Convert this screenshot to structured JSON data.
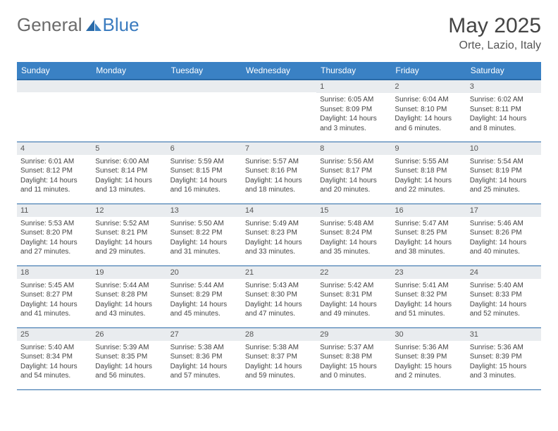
{
  "brand": {
    "part1": "General",
    "part2": "Blue"
  },
  "title": "May 2025",
  "location": "Orte, Lazio, Italy",
  "colors": {
    "header_bg": "#3a81c4",
    "header_border": "#2a6aa8",
    "daynum_bg": "#e9ecef",
    "text": "#333333",
    "brand_blue": "#3a7bbf"
  },
  "weekdays": [
    "Sunday",
    "Monday",
    "Tuesday",
    "Wednesday",
    "Thursday",
    "Friday",
    "Saturday"
  ],
  "weeks": [
    [
      {
        "n": "",
        "sr": "",
        "ss": "",
        "dl": ""
      },
      {
        "n": "",
        "sr": "",
        "ss": "",
        "dl": ""
      },
      {
        "n": "",
        "sr": "",
        "ss": "",
        "dl": ""
      },
      {
        "n": "",
        "sr": "",
        "ss": "",
        "dl": ""
      },
      {
        "n": "1",
        "sr": "Sunrise: 6:05 AM",
        "ss": "Sunset: 8:09 PM",
        "dl": "Daylight: 14 hours and 3 minutes."
      },
      {
        "n": "2",
        "sr": "Sunrise: 6:04 AM",
        "ss": "Sunset: 8:10 PM",
        "dl": "Daylight: 14 hours and 6 minutes."
      },
      {
        "n": "3",
        "sr": "Sunrise: 6:02 AM",
        "ss": "Sunset: 8:11 PM",
        "dl": "Daylight: 14 hours and 8 minutes."
      }
    ],
    [
      {
        "n": "4",
        "sr": "Sunrise: 6:01 AM",
        "ss": "Sunset: 8:12 PM",
        "dl": "Daylight: 14 hours and 11 minutes."
      },
      {
        "n": "5",
        "sr": "Sunrise: 6:00 AM",
        "ss": "Sunset: 8:14 PM",
        "dl": "Daylight: 14 hours and 13 minutes."
      },
      {
        "n": "6",
        "sr": "Sunrise: 5:59 AM",
        "ss": "Sunset: 8:15 PM",
        "dl": "Daylight: 14 hours and 16 minutes."
      },
      {
        "n": "7",
        "sr": "Sunrise: 5:57 AM",
        "ss": "Sunset: 8:16 PM",
        "dl": "Daylight: 14 hours and 18 minutes."
      },
      {
        "n": "8",
        "sr": "Sunrise: 5:56 AM",
        "ss": "Sunset: 8:17 PM",
        "dl": "Daylight: 14 hours and 20 minutes."
      },
      {
        "n": "9",
        "sr": "Sunrise: 5:55 AM",
        "ss": "Sunset: 8:18 PM",
        "dl": "Daylight: 14 hours and 22 minutes."
      },
      {
        "n": "10",
        "sr": "Sunrise: 5:54 AM",
        "ss": "Sunset: 8:19 PM",
        "dl": "Daylight: 14 hours and 25 minutes."
      }
    ],
    [
      {
        "n": "11",
        "sr": "Sunrise: 5:53 AM",
        "ss": "Sunset: 8:20 PM",
        "dl": "Daylight: 14 hours and 27 minutes."
      },
      {
        "n": "12",
        "sr": "Sunrise: 5:52 AM",
        "ss": "Sunset: 8:21 PM",
        "dl": "Daylight: 14 hours and 29 minutes."
      },
      {
        "n": "13",
        "sr": "Sunrise: 5:50 AM",
        "ss": "Sunset: 8:22 PM",
        "dl": "Daylight: 14 hours and 31 minutes."
      },
      {
        "n": "14",
        "sr": "Sunrise: 5:49 AM",
        "ss": "Sunset: 8:23 PM",
        "dl": "Daylight: 14 hours and 33 minutes."
      },
      {
        "n": "15",
        "sr": "Sunrise: 5:48 AM",
        "ss": "Sunset: 8:24 PM",
        "dl": "Daylight: 14 hours and 35 minutes."
      },
      {
        "n": "16",
        "sr": "Sunrise: 5:47 AM",
        "ss": "Sunset: 8:25 PM",
        "dl": "Daylight: 14 hours and 38 minutes."
      },
      {
        "n": "17",
        "sr": "Sunrise: 5:46 AM",
        "ss": "Sunset: 8:26 PM",
        "dl": "Daylight: 14 hours and 40 minutes."
      }
    ],
    [
      {
        "n": "18",
        "sr": "Sunrise: 5:45 AM",
        "ss": "Sunset: 8:27 PM",
        "dl": "Daylight: 14 hours and 41 minutes."
      },
      {
        "n": "19",
        "sr": "Sunrise: 5:44 AM",
        "ss": "Sunset: 8:28 PM",
        "dl": "Daylight: 14 hours and 43 minutes."
      },
      {
        "n": "20",
        "sr": "Sunrise: 5:44 AM",
        "ss": "Sunset: 8:29 PM",
        "dl": "Daylight: 14 hours and 45 minutes."
      },
      {
        "n": "21",
        "sr": "Sunrise: 5:43 AM",
        "ss": "Sunset: 8:30 PM",
        "dl": "Daylight: 14 hours and 47 minutes."
      },
      {
        "n": "22",
        "sr": "Sunrise: 5:42 AM",
        "ss": "Sunset: 8:31 PM",
        "dl": "Daylight: 14 hours and 49 minutes."
      },
      {
        "n": "23",
        "sr": "Sunrise: 5:41 AM",
        "ss": "Sunset: 8:32 PM",
        "dl": "Daylight: 14 hours and 51 minutes."
      },
      {
        "n": "24",
        "sr": "Sunrise: 5:40 AM",
        "ss": "Sunset: 8:33 PM",
        "dl": "Daylight: 14 hours and 52 minutes."
      }
    ],
    [
      {
        "n": "25",
        "sr": "Sunrise: 5:40 AM",
        "ss": "Sunset: 8:34 PM",
        "dl": "Daylight: 14 hours and 54 minutes."
      },
      {
        "n": "26",
        "sr": "Sunrise: 5:39 AM",
        "ss": "Sunset: 8:35 PM",
        "dl": "Daylight: 14 hours and 56 minutes."
      },
      {
        "n": "27",
        "sr": "Sunrise: 5:38 AM",
        "ss": "Sunset: 8:36 PM",
        "dl": "Daylight: 14 hours and 57 minutes."
      },
      {
        "n": "28",
        "sr": "Sunrise: 5:38 AM",
        "ss": "Sunset: 8:37 PM",
        "dl": "Daylight: 14 hours and 59 minutes."
      },
      {
        "n": "29",
        "sr": "Sunrise: 5:37 AM",
        "ss": "Sunset: 8:38 PM",
        "dl": "Daylight: 15 hours and 0 minutes."
      },
      {
        "n": "30",
        "sr": "Sunrise: 5:36 AM",
        "ss": "Sunset: 8:39 PM",
        "dl": "Daylight: 15 hours and 2 minutes."
      },
      {
        "n": "31",
        "sr": "Sunrise: 5:36 AM",
        "ss": "Sunset: 8:39 PM",
        "dl": "Daylight: 15 hours and 3 minutes."
      }
    ]
  ]
}
